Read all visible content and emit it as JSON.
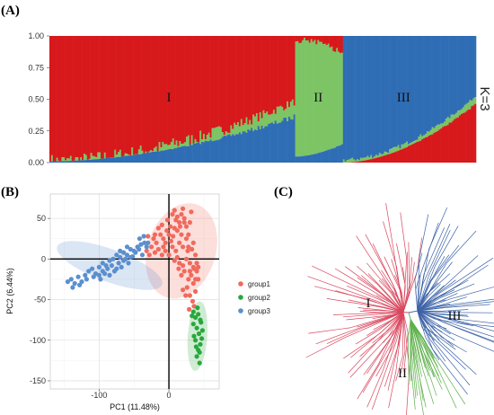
{
  "panels": {
    "a": "(A)",
    "b": "(B)",
    "c": "(C)"
  },
  "colors": {
    "cluster1_red": "#d7191c",
    "cluster2_green": "#7dc465",
    "cluster3_blue": "#2f6db5",
    "pca_group1": "#f06a5d",
    "pca_group2": "#28a83c",
    "pca_group3": "#5b8fce",
    "tree_red": "#d9475e",
    "tree_green": "#5db04a",
    "tree_blue": "#3d63a8"
  },
  "chart_data": [
    {
      "type": "bar",
      "panel": "(A)",
      "subtype": "stacked admixture (structure) plot",
      "k_label": "K=3",
      "ylim": [
        0,
        1
      ],
      "yticks": [
        "0.00",
        "0.25",
        "0.50",
        "0.75",
        "1.00"
      ],
      "cluster_labels": [
        "I",
        "II",
        "III"
      ],
      "n_individuals": 250,
      "series": [
        {
          "name": "I",
          "color": "#d7191c"
        },
        {
          "name": "II",
          "color": "#7dc465"
        },
        {
          "name": "III",
          "color": "#2f6db5"
        }
      ],
      "segments": [
        {
          "cluster": "I",
          "fraction_of_samples": 0.574,
          "red": [
            0.99,
            0.52
          ],
          "green": [
            0.0,
            0.12
          ],
          "blue": [
            0.01,
            0.36
          ]
        },
        {
          "cluster": "II",
          "fraction_of_samples": 0.113,
          "red": [
            0.0,
            0.1
          ],
          "green": [
            0.95,
            0.75
          ],
          "blue": [
            0.05,
            0.15
          ]
        },
        {
          "cluster": "III",
          "fraction_of_samples": 0.313,
          "red": [
            0.0,
            0.46
          ],
          "green": [
            0.02,
            0.06
          ],
          "blue": [
            0.98,
            0.48
          ]
        }
      ],
      "ylabel": "",
      "xlabel": ""
    },
    {
      "type": "scatter",
      "panel": "(B)",
      "xlabel": "PC1 (11.48%)",
      "ylabel": "PC2 (6.44%)",
      "xlim": [
        -170,
        72
      ],
      "ylim": [
        -160,
        80
      ],
      "xticks": [
        -100,
        0
      ],
      "yticks": [
        50,
        0,
        -50,
        -100,
        -150
      ],
      "grid": true,
      "legend_position": "right",
      "series": [
        {
          "name": "group1",
          "color": "#f06a5d",
          "points": [
            [
              -30,
              28
            ],
            [
              -20,
              30
            ],
            [
              -15,
              38
            ],
            [
              -10,
              42
            ],
            [
              -8,
              25
            ],
            [
              -5,
              20
            ],
            [
              0,
              30
            ],
            [
              2,
              40
            ],
            [
              5,
              55
            ],
            [
              8,
              60
            ],
            [
              10,
              48
            ],
            [
              12,
              35
            ],
            [
              15,
              45
            ],
            [
              18,
              55
            ],
            [
              20,
              62
            ],
            [
              22,
              50
            ],
            [
              25,
              40
            ],
            [
              28,
              30
            ],
            [
              30,
              45
            ],
            [
              32,
              58
            ],
            [
              25,
              25
            ],
            [
              20,
              15
            ],
            [
              15,
              20
            ],
            [
              10,
              10
            ],
            [
              5,
              15
            ],
            [
              0,
              5
            ],
            [
              -5,
              10
            ],
            [
              -10,
              5
            ],
            [
              -15,
              12
            ],
            [
              -20,
              8
            ],
            [
              -25,
              15
            ],
            [
              -28,
              5
            ],
            [
              -32,
              10
            ],
            [
              -18,
              20
            ],
            [
              -12,
              30
            ],
            [
              -2,
              48
            ],
            [
              8,
              38
            ],
            [
              18,
              30
            ],
            [
              28,
              15
            ],
            [
              35,
              20
            ],
            [
              38,
              5
            ],
            [
              40,
              -5
            ],
            [
              35,
              -10
            ],
            [
              30,
              -5
            ],
            [
              25,
              0
            ],
            [
              20,
              -8
            ],
            [
              15,
              -5
            ],
            [
              12,
              2
            ],
            [
              8,
              -2
            ],
            [
              32,
              -20
            ],
            [
              35,
              -30
            ],
            [
              38,
              -40
            ],
            [
              30,
              -15
            ],
            [
              40,
              -15
            ],
            [
              42,
              -25
            ],
            [
              36,
              -12
            ],
            [
              26,
              -35
            ],
            [
              30,
              -45
            ],
            [
              34,
              -52
            ],
            [
              28,
              -25
            ],
            [
              22,
              -15
            ],
            [
              18,
              -20
            ],
            [
              14,
              -12
            ],
            [
              38,
              -25
            ],
            [
              42,
              -10
            ],
            [
              24,
              -45
            ],
            [
              20,
              -38
            ],
            [
              16,
              40
            ],
            [
              3,
              22
            ],
            [
              -3,
              35
            ],
            [
              6,
              28
            ],
            [
              -22,
              25
            ],
            [
              -8,
              15
            ],
            [
              12,
              52
            ],
            [
              22,
              45
            ],
            [
              27,
              10
            ],
            [
              33,
              12
            ],
            [
              36,
              -58
            ],
            [
              29,
              -62
            ]
          ]
        },
        {
          "name": "group2",
          "color": "#28a83c",
          "points": [
            [
              35,
              -65
            ],
            [
              38,
              -72
            ],
            [
              42,
              -68
            ],
            [
              45,
              -75
            ],
            [
              40,
              -85
            ],
            [
              43,
              -92
            ],
            [
              38,
              -100
            ],
            [
              45,
              -105
            ],
            [
              42,
              -112
            ],
            [
              40,
              -120
            ],
            [
              44,
              -128
            ],
            [
              36,
              -95
            ],
            [
              48,
              -88
            ],
            [
              46,
              -78
            ],
            [
              35,
              -80
            ],
            [
              41,
              -60
            ],
            [
              47,
              -98
            ],
            [
              39,
              -108
            ],
            [
              33,
              -70
            ],
            [
              44,
              -115
            ]
          ]
        },
        {
          "name": "group3",
          "color": "#5b8fce",
          "points": [
            [
              -140,
              -25
            ],
            [
              -135,
              -30
            ],
            [
              -130,
              -22
            ],
            [
              -125,
              -28
            ],
            [
              -120,
              -20
            ],
            [
              -115,
              -15
            ],
            [
              -110,
              -12
            ],
            [
              -105,
              -18
            ],
            [
              -100,
              -10
            ],
            [
              -95,
              -5
            ],
            [
              -90,
              -8
            ],
            [
              -85,
              -2
            ],
            [
              -80,
              0
            ],
            [
              -75,
              5
            ],
            [
              -70,
              2
            ],
            [
              -65,
              8
            ],
            [
              -60,
              5
            ],
            [
              -55,
              12
            ],
            [
              -50,
              10
            ],
            [
              -45,
              15
            ],
            [
              -40,
              18
            ],
            [
              -35,
              20
            ],
            [
              -100,
              -20
            ],
            [
              -95,
              -15
            ],
            [
              -88,
              -12
            ],
            [
              -82,
              -8
            ],
            [
              -78,
              -15
            ],
            [
              -72,
              -5
            ],
            [
              -68,
              -10
            ],
            [
              -62,
              0
            ],
            [
              -58,
              -5
            ],
            [
              -52,
              3
            ],
            [
              -48,
              8
            ],
            [
              -43,
              12
            ],
            [
              -38,
              5
            ],
            [
              -32,
              15
            ],
            [
              -138,
              -35
            ],
            [
              -128,
              -32
            ],
            [
              -118,
              -25
            ],
            [
              -108,
              -22
            ],
            [
              -98,
              -25
            ],
            [
              -92,
              -18
            ],
            [
              -85,
              -20
            ],
            [
              -75,
              -12
            ],
            [
              -65,
              -2
            ],
            [
              -55,
              2
            ],
            [
              -145,
              -28
            ],
            [
              -42,
              25
            ],
            [
              -36,
              28
            ],
            [
              -30,
              20
            ],
            [
              -60,
              15
            ],
            [
              -70,
              10
            ]
          ]
        }
      ],
      "ellipses": [
        {
          "group": "group1",
          "color": "#f06a5d",
          "cx": 18,
          "cy": 10,
          "rx": 70,
          "ry": 42,
          "angle_deg": -72
        },
        {
          "group": "group2",
          "color": "#28a83c",
          "cx": 41,
          "cy": -95,
          "rx": 50,
          "ry": 12,
          "angle_deg": -86
        },
        {
          "group": "group3",
          "color": "#5b8fce",
          "cx": -85,
          "cy": -8,
          "rx": 80,
          "ry": 20,
          "angle_deg": 20
        }
      ],
      "reference_lines": {
        "x": 0,
        "y": 0
      }
    },
    {
      "type": "other",
      "panel": "(C)",
      "subtype": "unrooted phylogenetic tree",
      "clade_labels": [
        "I",
        "II",
        "III"
      ],
      "clades": [
        {
          "name": "I",
          "color": "#d9475e",
          "n_tips": 70,
          "angle_range_deg": [
            80,
            270
          ]
        },
        {
          "name": "II",
          "color": "#5db04a",
          "n_tips": 28,
          "angle_range_deg": [
            270,
            302
          ]
        },
        {
          "name": "III",
          "color": "#3d63a8",
          "n_tips": 60,
          "angle_range_deg": [
            -58,
            80
          ]
        }
      ]
    }
  ]
}
